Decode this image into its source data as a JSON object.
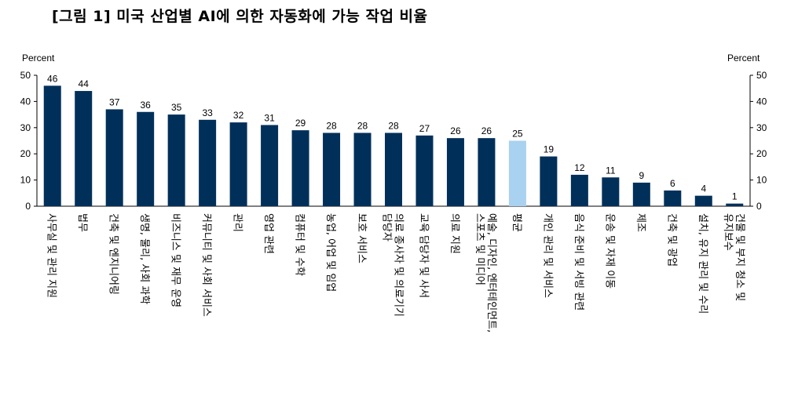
{
  "title": "[그림 1] 미국 산업별 AI에 의한 자동화에 가능 작업 비율",
  "chart_data": {
    "type": "bar",
    "ylabel_left": "Percent",
    "ylabel_right": "Percent",
    "ylim": [
      0,
      50
    ],
    "yticks": [
      0,
      10,
      20,
      30,
      40,
      50
    ],
    "grid": false,
    "colors": {
      "bar": "#00305a",
      "highlight": "#a9d1f0"
    },
    "highlight_category": "평균",
    "categories": [
      "사무실 및 관리 지원",
      "법무",
      "건축 및 엔지니어링",
      "생명, 물리, 사회 과학",
      "비즈니스 및 재무 운영",
      "커뮤니티 및 사회 서비스",
      "관리",
      "영업 관련",
      "컴퓨터 및 수학",
      "농업, 어업 및 임업",
      "보호 서비스",
      "의료 종사자 및 의료기기 담당자",
      "교육 담당자 및 사서",
      "의료 지원",
      "예술, 디자인, 엔터테인먼트, 스포츠 및 미디어",
      "평균",
      "개인 관리 및 서비스",
      "음식 준비 및 서빙 관련",
      "운송 및 자재 이동",
      "제조",
      "건축 및 광업",
      "설치, 유지 관리 및 수리",
      "건물 및 부지 청소 및 유지보수"
    ],
    "values": [
      46,
      44,
      37,
      36,
      35,
      33,
      32,
      31,
      29,
      28,
      28,
      28,
      27,
      26,
      26,
      25,
      19,
      12,
      11,
      9,
      6,
      4,
      1
    ]
  }
}
